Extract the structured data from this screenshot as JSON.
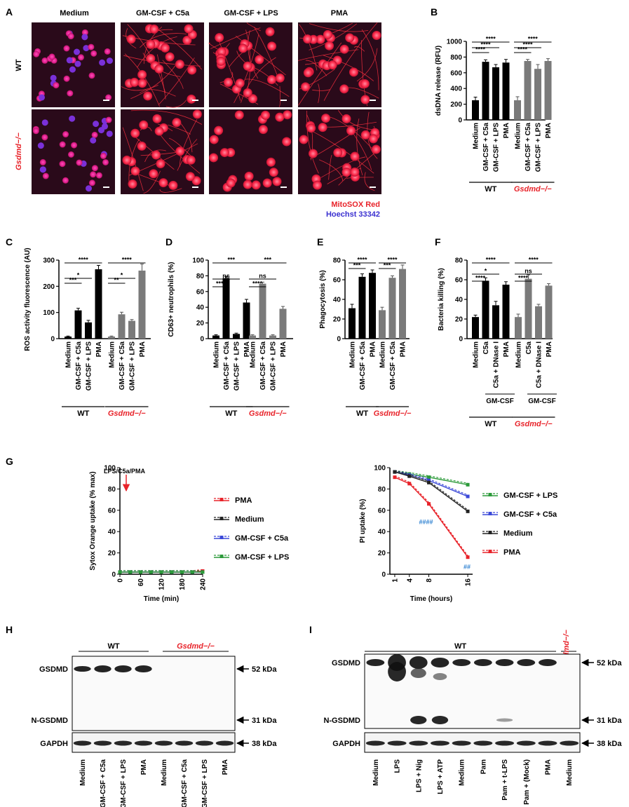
{
  "panel_letters": [
    "A",
    "B",
    "C",
    "D",
    "E",
    "F",
    "G",
    "H",
    "I"
  ],
  "colors": {
    "black_bar": "#000000",
    "gray_bar": "#7a7a7a",
    "red": "#e8232a",
    "black": "#222222",
    "blue": "#3a48d8",
    "green": "#2c9a3a",
    "hash_blue": "#2a7fd0"
  },
  "panelA": {
    "columns": [
      "Medium",
      "GM-CSF + C5a",
      "GM-CSF + LPS",
      "PMA"
    ],
    "rows": [
      "WT",
      "Gsdmd−/−"
    ],
    "stain1": "MitoSOX Red",
    "stain2": "Hoechst 33342"
  },
  "groups": {
    "wt": "WT",
    "ko": "Gsdmd−/−"
  },
  "chart_data": [
    {
      "id": "B",
      "type": "bar",
      "ylabel": "dsDNA release (RFU)",
      "ylim": [
        0,
        1000
      ],
      "yticks": [
        "0",
        "200",
        "400",
        "600",
        "800",
        "1000"
      ],
      "categories": [
        "Medium",
        "GM-CSF + C5a",
        "GM-CSF + LPS",
        "PMA"
      ],
      "series": [
        {
          "name": "WT",
          "values": [
            250,
            740,
            670,
            730
          ],
          "err": [
            40,
            25,
            35,
            40
          ]
        },
        {
          "name": "Gsdmd−/−",
          "values": [
            250,
            750,
            650,
            750
          ],
          "err": [
            45,
            20,
            55,
            30
          ]
        }
      ],
      "sig_wt": [
        "****",
        "****",
        "****"
      ],
      "sig_ko": [
        "****",
        "****",
        "****"
      ]
    },
    {
      "id": "C",
      "type": "bar",
      "ylabel": "ROS activity fluorescence (AU)",
      "ylim": [
        0,
        300
      ],
      "yticks": [
        "0",
        "100",
        "200",
        "300"
      ],
      "categories": [
        "Medium",
        "GM-CSF + C5a",
        "GM-CSF + LPS",
        "PMA"
      ],
      "series": [
        {
          "name": "WT",
          "values": [
            8,
            108,
            62,
            265
          ],
          "err": [
            2,
            8,
            8,
            15
          ]
        },
        {
          "name": "Gsdmd−/−",
          "values": [
            8,
            93,
            68,
            260
          ],
          "err": [
            2,
            8,
            5,
            25
          ]
        }
      ],
      "sig_wt": [
        "***",
        "*",
        "****"
      ],
      "sig_ko": [
        "**",
        "*",
        "****"
      ]
    },
    {
      "id": "D",
      "type": "bar",
      "ylabel": "CD63+ neutrophils (%)",
      "ylim": [
        0,
        100
      ],
      "yticks": [
        "0",
        "20",
        "40",
        "60",
        "80",
        "100"
      ],
      "categories": [
        "Medium",
        "GM-CSF + C5a",
        "GM-CSF + LPS",
        "PMA"
      ],
      "series": [
        {
          "name": "WT",
          "values": [
            4,
            77,
            6,
            46
          ],
          "err": [
            1,
            2,
            1,
            4
          ]
        },
        {
          "name": "Gsdmd−/−",
          "values": [
            4,
            70,
            4,
            38
          ],
          "err": [
            1,
            2,
            1,
            3
          ]
        }
      ],
      "sig_wt": [
        "****",
        "ns",
        "***"
      ],
      "sig_ko": [
        "****",
        "ns",
        "***"
      ]
    },
    {
      "id": "E",
      "type": "bar",
      "ylabel": "Phagocytosis (%)",
      "ylim": [
        0,
        80
      ],
      "yticks": [
        "0",
        "20",
        "40",
        "60",
        "80"
      ],
      "categories": [
        "Medium",
        "GM-CSF + C5a",
        "PMA"
      ],
      "series": [
        {
          "name": "WT",
          "values": [
            31,
            63,
            67
          ],
          "err": [
            4,
            3,
            3
          ]
        },
        {
          "name": "Gsdmd−/−",
          "values": [
            29,
            62,
            71
          ],
          "err": [
            3,
            2,
            4
          ]
        }
      ],
      "sig_wt": [
        "***",
        "****"
      ],
      "sig_ko": [
        "***",
        "****"
      ]
    },
    {
      "id": "F",
      "type": "bar",
      "ylabel": "Bacteria killing (%)",
      "ylim": [
        0,
        80
      ],
      "yticks": [
        "0",
        "20",
        "40",
        "60",
        "80"
      ],
      "categories": [
        "Medium",
        "C5a",
        "C5a + DNase I",
        "PMA"
      ],
      "subgroup": "GM-CSF",
      "series": [
        {
          "name": "WT",
          "values": [
            22,
            59,
            34,
            55
          ],
          "err": [
            2,
            3,
            4,
            3
          ]
        },
        {
          "name": "Gsdmd−/−",
          "values": [
            22,
            61,
            33,
            54
          ],
          "err": [
            3,
            4,
            2,
            2
          ]
        }
      ],
      "sig_wt": [
        "****",
        "*",
        "****"
      ],
      "sig_ko": [
        "****",
        "ns",
        "****"
      ]
    },
    {
      "id": "G1",
      "type": "line",
      "ylabel": "Sytox Orange uptake (% max)",
      "xlabel": "Time (min)",
      "ylim": [
        0,
        100
      ],
      "yticks": [
        "0",
        "20",
        "40",
        "60",
        "80",
        "100"
      ],
      "xticks": [
        "0",
        "60",
        "120",
        "180",
        "240"
      ],
      "annotation": "LPS/C5a/PMA",
      "series": [
        {
          "name": "PMA",
          "x": [
            0,
            30,
            60,
            90,
            120,
            150,
            180,
            210,
            240
          ],
          "y": [
            2,
            2,
            2,
            2,
            2,
            2,
            2,
            2,
            3
          ]
        },
        {
          "name": "Medium",
          "x": [
            0,
            30,
            60,
            90,
            120,
            150,
            180,
            210,
            240
          ],
          "y": [
            2,
            2,
            2,
            2,
            2,
            2,
            2,
            2,
            2
          ]
        },
        {
          "name": "GM-CSF + C5a",
          "x": [
            0,
            30,
            60,
            90,
            120,
            150,
            180,
            210,
            240
          ],
          "y": [
            2,
            2,
            2,
            2,
            2,
            2,
            2,
            2,
            2
          ]
        },
        {
          "name": "GM-CSF + LPS",
          "x": [
            0,
            30,
            60,
            90,
            120,
            150,
            180,
            210,
            240
          ],
          "y": [
            2,
            2,
            2,
            2,
            2,
            2,
            2,
            2,
            2
          ]
        }
      ]
    },
    {
      "id": "G2",
      "type": "line",
      "ylabel": "PI uptake (%)",
      "xlabel": "Time (hours)",
      "ylim": [
        0,
        100
      ],
      "yticks": [
        "0",
        "20",
        "40",
        "60",
        "80",
        "100"
      ],
      "xticks": [
        "1",
        "4",
        "8",
        "16"
      ],
      "series": [
        {
          "name": "GM-CSF + LPS",
          "x": [
            1,
            4,
            8,
            16
          ],
          "y": [
            96,
            94,
            91,
            84
          ]
        },
        {
          "name": "GM-CSF + C5a",
          "x": [
            1,
            4,
            8,
            16
          ],
          "y": [
            96,
            93,
            88,
            73
          ]
        },
        {
          "name": "Medium",
          "x": [
            1,
            4,
            8,
            16
          ],
          "y": [
            96,
            92,
            86,
            59
          ]
        },
        {
          "name": "PMA",
          "x": [
            1,
            4,
            8,
            16
          ],
          "y": [
            91,
            85,
            66,
            16
          ]
        }
      ],
      "marks": [
        "####",
        "##"
      ]
    }
  ],
  "panelH": {
    "groups": [
      "WT",
      "Gsdmd−/−"
    ],
    "rows": [
      "GSDMD",
      "N-GSDMD",
      "GAPDH"
    ],
    "kda": [
      "52 kDa",
      "31 kDa",
      "38 kDa"
    ],
    "lanes": [
      "Medium",
      "GM-CSF + C5a",
      "GM-CSF + LPS",
      "PMA",
      "Medium",
      "GM-CSF + C5a",
      "GM-CSF + LPS",
      "PMA"
    ]
  },
  "panelI": {
    "groups": [
      "WT",
      "Gsdmd−/−"
    ],
    "rows": [
      "GSDMD",
      "N-GSDMD",
      "GAPDH"
    ],
    "kda": [
      "52 kDa",
      "31 kDa",
      "38 kDa"
    ],
    "lanes": [
      "Medium",
      "LPS",
      "LPS + Nig",
      "LPS + ATP",
      "Medium",
      "Pam",
      "Pam + t-LPS",
      "Pam + (Mock)",
      "PMA",
      "Medium"
    ]
  }
}
